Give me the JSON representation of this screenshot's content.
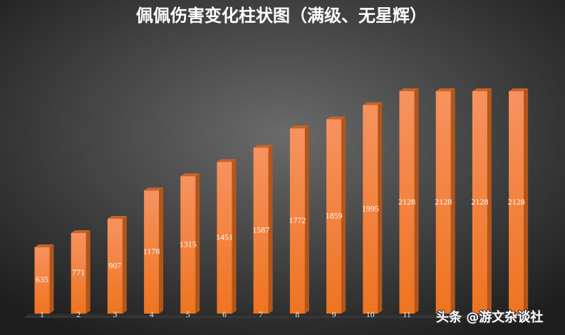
{
  "chart_data": {
    "type": "bar",
    "title": "佩佩伤害变化柱状图（满级、无星辉）",
    "categories": [
      "1",
      "2",
      "3",
      "4",
      "5",
      "6",
      "7",
      "8",
      "9",
      "10",
      "11",
      null,
      null,
      null
    ],
    "values": [
      635,
      771,
      907,
      1178,
      1315,
      1451,
      1587,
      1772,
      1859,
      1995,
      2128,
      2128,
      2128,
      2128
    ],
    "color": "#f07a2e",
    "watermark": "头条 @游文杂谈社"
  }
}
